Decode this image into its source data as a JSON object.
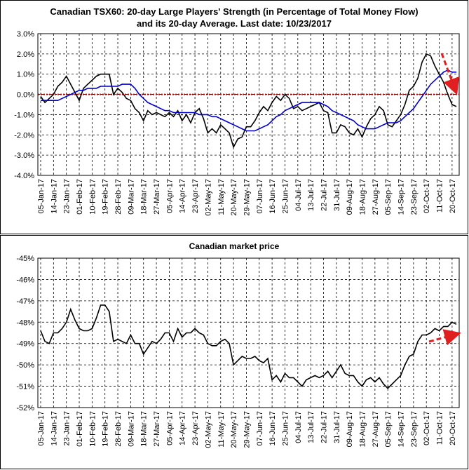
{
  "chart_data": [
    {
      "type": "line",
      "title": "Canadian TSX60: 20-day Large Players' Strength (in Percentage of Total Money Flow) and its 20-day Average. Last date: 10/23/2017",
      "categories": [
        "05-Jan-17",
        null,
        null,
        "14-Jan-17",
        null,
        null,
        "23-Jan-17",
        null,
        null,
        "01-Feb-17",
        null,
        null,
        "10-Feb-17",
        null,
        null,
        "19-Feb-17",
        null,
        null,
        "28-Feb-17",
        null,
        null,
        "09-Mar-17",
        null,
        null,
        "18-Mar-17",
        null,
        null,
        "27-Mar-17",
        null,
        null,
        "05-Apr-17",
        null,
        null,
        "14-Apr-17",
        null,
        null,
        "23-Apr-17",
        null,
        null,
        "02-May-17",
        null,
        null,
        "11-May-17",
        null,
        null,
        "20-May-17",
        null,
        null,
        "29-May-17",
        null,
        null,
        "07-Jun-17",
        null,
        null,
        "16-Jun-17",
        null,
        null,
        "25-Jun-17",
        null,
        null,
        "04-Jul-17",
        null,
        null,
        "13-Jul-17",
        null,
        null,
        "22-Jul-17",
        null,
        null,
        "31-Jul-17",
        null,
        null,
        "09-Aug-17",
        null,
        null,
        "18-Aug-17",
        null,
        null,
        "27-Aug-17",
        null,
        null,
        "05-Sep-17",
        null,
        null,
        "14-Sep-17",
        null,
        null,
        "23-Sep-17",
        null,
        null,
        "02-Oct-17",
        null,
        null,
        "11-Oct-17",
        null,
        null,
        "20-Oct-17",
        null
      ],
      "series": [
        {
          "color": "#000000",
          "values": [
            -0.1,
            -0.4,
            -0.2,
            0.0,
            0.4,
            0.6,
            0.9,
            0.5,
            0.1,
            -0.3,
            0.3,
            0.5,
            0.7,
            0.9,
            1.0,
            1.0,
            1.0,
            0.0,
            0.3,
            0.1,
            -0.2,
            -0.3,
            -0.7,
            -0.9,
            -1.3,
            -0.8,
            -1.0,
            -0.9,
            -1.0,
            -1.1,
            -0.9,
            -1.1,
            -0.8,
            -1.3,
            -1.0,
            -1.4,
            -0.9,
            -0.7,
            -1.2,
            -1.9,
            -1.7,
            -1.9,
            -1.5,
            -1.7,
            -1.9,
            -2.6,
            -2.2,
            -2.1,
            -1.6,
            -1.6,
            -1.3,
            -0.9,
            -0.6,
            -0.8,
            -0.4,
            -0.1,
            -0.3,
            0.0,
            -0.2,
            -0.7,
            -0.6,
            -0.8,
            -0.7,
            -0.6,
            -0.5,
            -0.4,
            -0.8,
            -0.9,
            -1.9,
            -1.9,
            -1.5,
            -1.6,
            -1.9,
            -2.0,
            -1.7,
            -2.1,
            -1.6,
            -1.2,
            -1.0,
            -0.6,
            -0.8,
            -1.5,
            -1.6,
            -1.3,
            -1.0,
            -0.5,
            0.2,
            0.4,
            0.8,
            1.6,
            2.0,
            1.9,
            1.4,
            1.0,
            0.6,
            0.0,
            -0.5,
            -0.6
          ]
        },
        {
          "color": "#0000cc",
          "values": [
            -0.3,
            -0.3,
            -0.3,
            -0.3,
            -0.3,
            -0.2,
            -0.1,
            0.0,
            0.1,
            0.2,
            0.2,
            0.3,
            0.3,
            0.3,
            0.4,
            0.4,
            0.4,
            0.4,
            0.4,
            0.5,
            0.5,
            0.5,
            0.3,
            0.0,
            -0.2,
            -0.4,
            -0.5,
            -0.6,
            -0.7,
            -0.8,
            -0.8,
            -0.9,
            -0.9,
            -0.9,
            -0.9,
            -0.9,
            -0.9,
            -1.0,
            -1.0,
            -1.0,
            -1.1,
            -1.1,
            -1.2,
            -1.3,
            -1.4,
            -1.5,
            -1.6,
            -1.7,
            -1.8,
            -1.8,
            -1.8,
            -1.7,
            -1.6,
            -1.5,
            -1.3,
            -1.1,
            -1.0,
            -0.8,
            -0.7,
            -0.6,
            -0.5,
            -0.4,
            -0.4,
            -0.4,
            -0.4,
            -0.4,
            -0.5,
            -0.6,
            -0.8,
            -0.9,
            -1.0,
            -1.1,
            -1.2,
            -1.3,
            -1.5,
            -1.6,
            -1.7,
            -1.7,
            -1.7,
            -1.6,
            -1.5,
            -1.4,
            -1.4,
            -1.4,
            -1.3,
            -1.1,
            -0.9,
            -0.7,
            -0.4,
            -0.1,
            0.2,
            0.5,
            0.7,
            0.9,
            1.1,
            1.2,
            1.1,
            1.1
          ]
        }
      ],
      "reference_line": {
        "value": 0,
        "color": "#c00000"
      },
      "ylim": [
        -4,
        3
      ],
      "yticks": [
        {
          "value": -4,
          "label": "-4.0%"
        },
        {
          "value": -3,
          "label": "-3.0%"
        },
        {
          "value": -2,
          "label": "-2.0%"
        },
        {
          "value": -1,
          "label": "-1.0%"
        },
        {
          "value": 0,
          "label": "0.0%"
        },
        {
          "value": 1,
          "label": "1.0%"
        },
        {
          "value": 2,
          "label": "2.0%"
        },
        {
          "value": 3,
          "label": "3.0%"
        }
      ],
      "grid": true
    },
    {
      "type": "line",
      "title": "Canadian market price",
      "categories": [
        "05-Jan-17",
        null,
        null,
        "14-Jan-17",
        null,
        null,
        "23-Jan-17",
        null,
        null,
        "01-Feb-17",
        null,
        null,
        "10-Feb-17",
        null,
        null,
        "19-Feb-17",
        null,
        null,
        "28-Feb-17",
        null,
        null,
        "09-Mar-17",
        null,
        null,
        "18-Mar-17",
        null,
        null,
        "27-Mar-17",
        null,
        null,
        "05-Apr-17",
        null,
        null,
        "14-Apr-17",
        null,
        null,
        "23-Apr-17",
        null,
        null,
        "02-May-17",
        null,
        null,
        "11-May-17",
        null,
        null,
        "20-May-17",
        null,
        null,
        "29-May-17",
        null,
        null,
        "07-Jun-17",
        null,
        null,
        "16-Jun-17",
        null,
        null,
        "25-Jun-17",
        null,
        null,
        "04-Jul-17",
        null,
        null,
        "13-Jul-17",
        null,
        null,
        "22-Jul-17",
        null,
        null,
        "31-Jul-17",
        null,
        null,
        "09-Aug-17",
        null,
        null,
        "18-Aug-17",
        null,
        null,
        "27-Aug-17",
        null,
        null,
        "05-Sep-17",
        null,
        null,
        "14-Sep-17",
        null,
        null,
        "23-Sep-17",
        null,
        null,
        "02-Oct-17",
        null,
        null,
        "11-Oct-17",
        null,
        null,
        "20-Oct-17",
        null
      ],
      "series": [
        {
          "color": "#000000",
          "values": [
            -48.4,
            -48.9,
            -49.0,
            -48.5,
            -48.5,
            -48.3,
            -48.0,
            -47.4,
            -47.9,
            -48.3,
            -48.4,
            -48.4,
            -48.3,
            -47.8,
            -47.2,
            -47.2,
            -47.5,
            -48.9,
            -48.8,
            -48.9,
            -49.0,
            -48.6,
            -49.0,
            -49.0,
            -49.5,
            -49.2,
            -48.9,
            -49.0,
            -48.8,
            -48.5,
            -48.5,
            -48.9,
            -48.3,
            -48.7,
            -48.5,
            -48.5,
            -48.3,
            -48.5,
            -48.6,
            -49.0,
            -49.1,
            -49.1,
            -48.9,
            -48.8,
            -49.0,
            -50.0,
            -49.8,
            -49.6,
            -49.7,
            -49.7,
            -49.6,
            -49.8,
            -49.9,
            -49.7,
            -50.7,
            -50.5,
            -50.8,
            -50.4,
            -50.6,
            -50.6,
            -50.8,
            -51.0,
            -50.7,
            -50.6,
            -50.5,
            -50.6,
            -50.5,
            -50.3,
            -50.6,
            -50.3,
            -50.0,
            -50.4,
            -50.5,
            -50.5,
            -50.8,
            -51.0,
            -50.7,
            -50.6,
            -50.8,
            -50.6,
            -50.9,
            -51.1,
            -50.9,
            -50.7,
            -50.5,
            -50.0,
            -49.6,
            -49.5,
            -48.9,
            -48.6,
            -48.6,
            -48.5,
            -48.3,
            -48.4,
            -48.2,
            -48.2,
            -48.0,
            -48.1
          ]
        }
      ],
      "ylim": [
        -52,
        -45
      ],
      "yticks": [
        {
          "value": -52,
          "label": "-52%"
        },
        {
          "value": -51,
          "label": "-51%"
        },
        {
          "value": -50,
          "label": "-50%"
        },
        {
          "value": -49,
          "label": "-49%"
        },
        {
          "value": -48,
          "label": "-48%"
        },
        {
          "value": -47,
          "label": "-47%"
        },
        {
          "value": -46,
          "label": "-46%"
        },
        {
          "value": -45,
          "label": "-45%"
        }
      ],
      "grid": true
    }
  ]
}
